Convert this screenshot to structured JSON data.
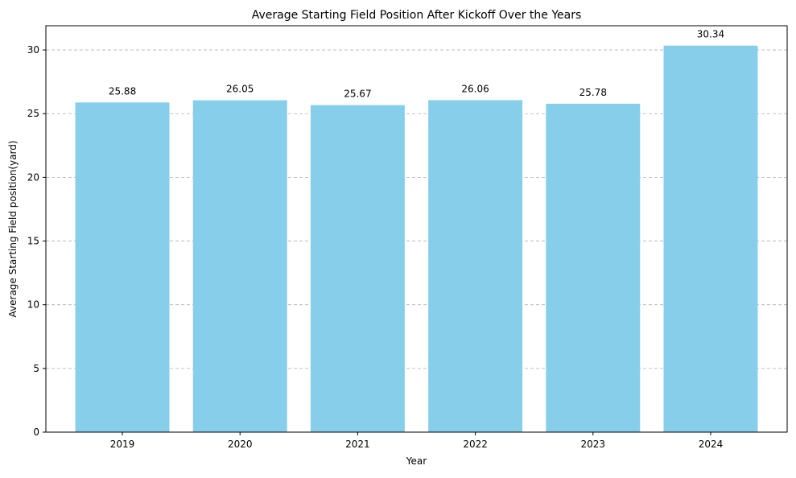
{
  "chart_data": {
    "type": "bar",
    "title": "Average Starting Field Position After Kickoff Over the Years",
    "xlabel": "Year",
    "ylabel": "Average Starting Field position(yard)",
    "categories": [
      "2019",
      "2020",
      "2021",
      "2022",
      "2023",
      "2024"
    ],
    "values": [
      25.88,
      26.05,
      25.67,
      26.06,
      25.78,
      30.34
    ],
    "data_labels": [
      "25.88",
      "26.05",
      "25.67",
      "26.06",
      "25.78",
      "30.34"
    ],
    "ylim": [
      0,
      31.9
    ],
    "yticks": [
      0,
      5,
      10,
      15,
      20,
      25,
      30
    ],
    "ytick_labels": [
      "0",
      "5",
      "10",
      "15",
      "20",
      "25",
      "30"
    ],
    "grid": "y-dashed",
    "bar_color": "#87CEEB"
  }
}
